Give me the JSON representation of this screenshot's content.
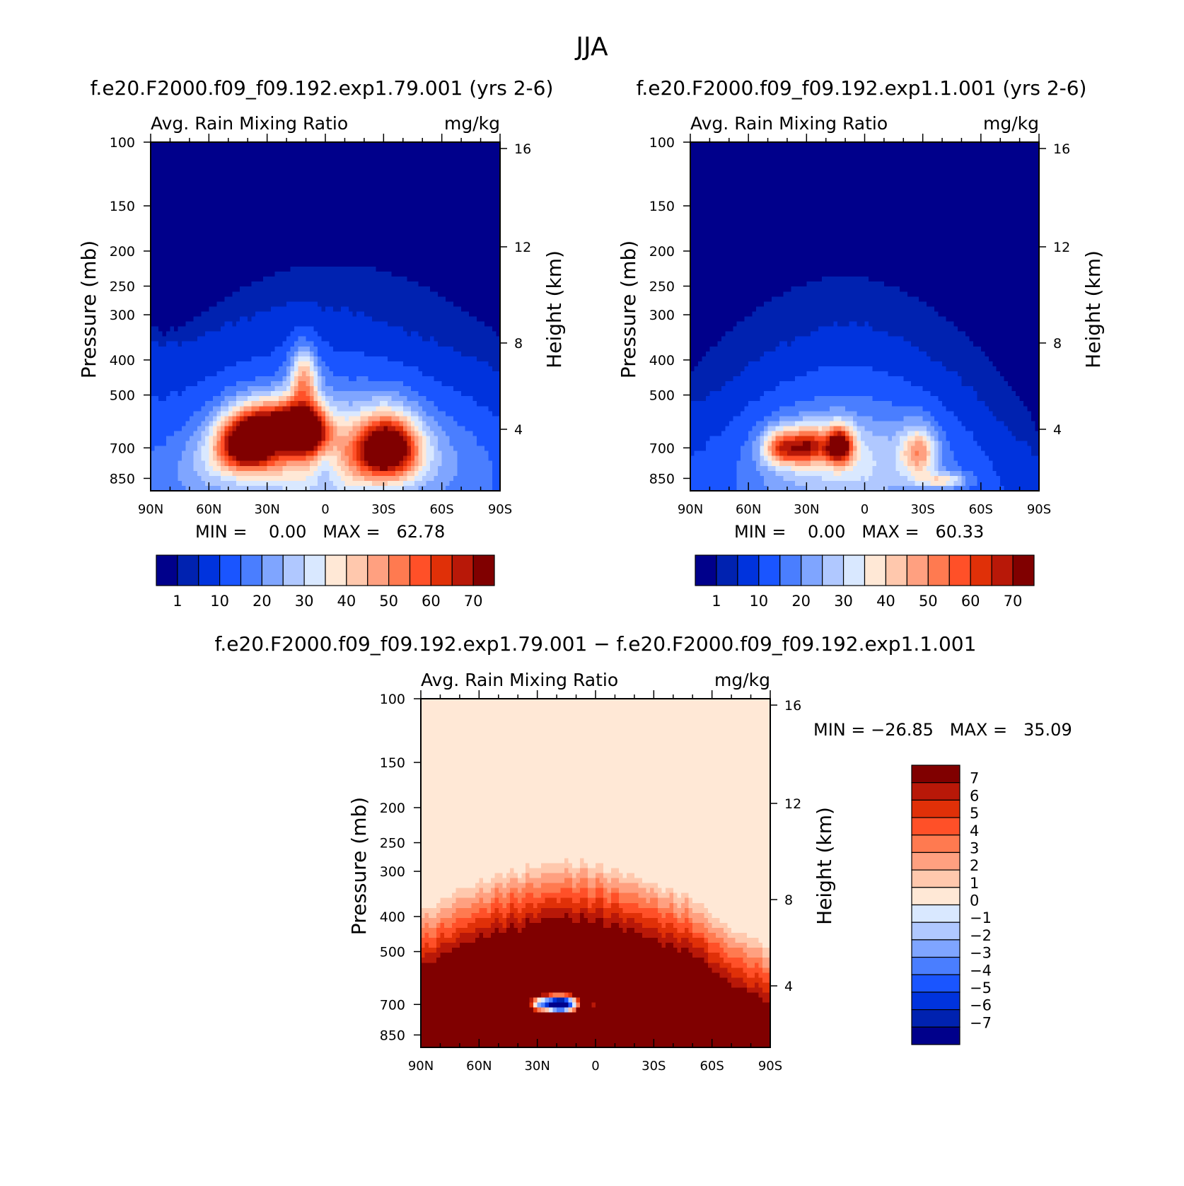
{
  "figure_title": "JJA",
  "chart_data": [
    {
      "type": "heatmap",
      "subtitle": "f.e20.F2000.f09_f09.192.exp1.79.001 (yrs 2-6)",
      "title": "Avg. Rain Mixing Ratio",
      "units": "mg/kg",
      "xlabel": "",
      "ylabel": "Pressure (mb)",
      "ylabel_right": "Height (km)",
      "x_ticks": [
        "90N",
        "60N",
        "30N",
        "0",
        "30S",
        "60S",
        "90S"
      ],
      "y_ticks": [
        "100",
        "150",
        "200",
        "250",
        "300",
        "400",
        "500",
        "700",
        "850"
      ],
      "y_right_ticks": [
        "16",
        "12",
        "8",
        "4"
      ],
      "y_scale": "log",
      "ylim": [
        100,
        1000
      ],
      "xlim": [
        90,
        -90
      ],
      "stats_text": "MIN =    0.00   MAX =   62.78",
      "min": 0.0,
      "max": 62.78,
      "colorbar_labels": [
        "1",
        "10",
        "20",
        "30",
        "40",
        "50",
        "60",
        "70"
      ],
      "colors": [
        "#00008b",
        "#0022b0",
        "#0033dd",
        "#1a55ff",
        "#4a7eff",
        "#7fa5ff",
        "#b0c8ff",
        "#d9e8ff",
        "#ffe8d6",
        "#ffc8ad",
        "#ffa080",
        "#ff7a50",
        "#ff5028",
        "#e03008",
        "#b81808",
        "#800000"
      ],
      "blobs": [
        {
          "lat": -5,
          "p": 740,
          "value": 28,
          "wlat": 55,
          "wp": 220
        },
        {
          "lat": 40,
          "p": 690,
          "value": 62,
          "wlat": 16,
          "wp": 110
        },
        {
          "lat": 11,
          "p": 630,
          "value": 60,
          "wlat": 11,
          "wp": 95
        },
        {
          "lat": 11,
          "p": 450,
          "value": 32,
          "wlat": 7,
          "wp": 80
        },
        {
          "lat": 26,
          "p": 600,
          "value": 42,
          "wlat": 20,
          "wp": 90
        },
        {
          "lat": -32,
          "p": 700,
          "value": 62,
          "wlat": 15,
          "wp": 130
        },
        {
          "lat": 0,
          "p": 800,
          "value": -12,
          "wlat": 8,
          "wp": 120
        },
        {
          "lat": 60,
          "p": 800,
          "value": 6,
          "wlat": 20,
          "wp": 150
        }
      ],
      "envelope": [
        [
          90,
          330
        ],
        [
          70,
          330
        ],
        [
          50,
          295
        ],
        [
          20,
          260
        ],
        [
          0,
          270
        ],
        [
          -20,
          285
        ],
        [
          -50,
          330
        ],
        [
          -80,
          380
        ],
        [
          -90,
          400
        ]
      ]
    },
    {
      "type": "heatmap",
      "subtitle": "f.e20.F2000.f09_f09.192.exp1.1.001 (yrs 2-6)",
      "title": "Avg. Rain Mixing Ratio",
      "units": "mg/kg",
      "xlabel": "",
      "ylabel": "Pressure (mb)",
      "ylabel_right": "Height (km)",
      "x_ticks": [
        "90N",
        "60N",
        "30N",
        "0",
        "30S",
        "60S",
        "90S"
      ],
      "y_ticks": [
        "100",
        "150",
        "200",
        "250",
        "300",
        "400",
        "500",
        "700",
        "850"
      ],
      "y_right_ticks": [
        "16",
        "12",
        "8",
        "4"
      ],
      "y_scale": "log",
      "ylim": [
        100,
        1000
      ],
      "xlim": [
        90,
        -90
      ],
      "stats_text": "MIN =    0.00   MAX =   60.33",
      "min": 0.0,
      "max": 60.33,
      "colorbar_labels": [
        "1",
        "10",
        "20",
        "30",
        "40",
        "50",
        "60",
        "70"
      ],
      "colors": [
        "#00008b",
        "#0022b0",
        "#0033dd",
        "#1a55ff",
        "#4a7eff",
        "#7fa5ff",
        "#b0c8ff",
        "#d9e8ff",
        "#ffe8d6",
        "#ffc8ad",
        "#ffa080",
        "#ff7a50",
        "#ff5028",
        "#e03008",
        "#b81808",
        "#800000"
      ],
      "blobs": [
        {
          "lat": 10,
          "p": 760,
          "value": 18,
          "wlat": 45,
          "wp": 230
        },
        {
          "lat": 13,
          "p": 690,
          "value": 58,
          "wlat": 7,
          "wp": 80
        },
        {
          "lat": 42,
          "p": 700,
          "value": 42,
          "wlat": 10,
          "wp": 80
        },
        {
          "lat": 28,
          "p": 690,
          "value": 38,
          "wlat": 9,
          "wp": 80
        },
        {
          "lat": -28,
          "p": 720,
          "value": 30,
          "wlat": 9,
          "wp": 110
        },
        {
          "lat": -40,
          "p": 860,
          "value": 22,
          "wlat": 12,
          "wp": 40
        }
      ],
      "envelope": [
        [
          90,
          500
        ],
        [
          70,
          440
        ],
        [
          50,
          360
        ],
        [
          20,
          305
        ],
        [
          0,
          305
        ],
        [
          -20,
          330
        ],
        [
          -50,
          430
        ],
        [
          -80,
          620
        ],
        [
          -90,
          680
        ]
      ]
    },
    {
      "type": "heatmap",
      "subtitle": "f.e20.F2000.f09_f09.192.exp1.79.001 − f.e20.F2000.f09_f09.192.exp1.1.001",
      "title": "Avg. Rain Mixing Ratio",
      "units": "mg/kg",
      "xlabel": "",
      "ylabel": "Pressure (mb)",
      "ylabel_right": "Height (km)",
      "x_ticks": [
        "90N",
        "60N",
        "30N",
        "0",
        "30S",
        "60S",
        "90S"
      ],
      "y_ticks": [
        "100",
        "150",
        "200",
        "250",
        "300",
        "400",
        "500",
        "700",
        "850"
      ],
      "y_right_ticks": [
        "16",
        "12",
        "8",
        "4"
      ],
      "y_scale": "log",
      "ylim": [
        100,
        1000
      ],
      "xlim": [
        90,
        -90
      ],
      "stats_text": "MIN = −26.85   MAX =   35.09",
      "min": -26.85,
      "max": 35.09,
      "colorbar_labels": [
        "7",
        "6",
        "5",
        "4",
        "3",
        "2",
        "1",
        "0",
        "−1",
        "−2",
        "−3",
        "−4",
        "−5",
        "−6",
        "−7"
      ],
      "colors": [
        "#800000",
        "#b81808",
        "#e03008",
        "#ff5028",
        "#ff7a50",
        "#ffa080",
        "#ffc8ad",
        "#ffe8d6",
        "#d9e8ff",
        "#b0c8ff",
        "#7fa5ff",
        "#4a7eff",
        "#1a55ff",
        "#0033dd",
        "#0022b0",
        "#00008b"
      ],
      "blobs": [
        {
          "lat": 18,
          "p": 700,
          "value": -27,
          "wlat": 10,
          "wp": 45
        },
        {
          "lat": 30,
          "p": 700,
          "value": -10,
          "wlat": 6,
          "wp": 40
        },
        {
          "lat": 0,
          "p": 700,
          "value": -8,
          "wlat": 4,
          "wp": 35
        },
        {
          "lat": 14,
          "p": 810,
          "value": -1,
          "wlat": 22,
          "wp": 120
        }
      ],
      "envelope": [
        [
          90,
          380
        ],
        [
          70,
          330
        ],
        [
          50,
          300
        ],
        [
          20,
          275
        ],
        [
          0,
          280
        ],
        [
          -20,
          300
        ],
        [
          -50,
          345
        ],
        [
          -70,
          420
        ],
        [
          -90,
          470
        ]
      ]
    }
  ]
}
